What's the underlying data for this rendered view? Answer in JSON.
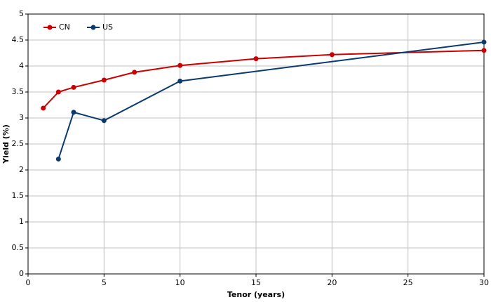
{
  "chart_data": {
    "type": "line",
    "xlabel": "Tenor (years)",
    "ylabel": "Yield (%)",
    "xlim": [
      0,
      30
    ],
    "xticks": [
      0,
      5,
      10,
      15,
      20,
      25,
      30
    ],
    "ylim": [
      0,
      5
    ],
    "yticks": [
      0,
      0.5,
      1,
      1.5,
      2,
      2.5,
      3,
      3.5,
      4,
      4.5,
      5
    ],
    "grid": true,
    "legend": "upper left",
    "series": [
      {
        "name": "CN",
        "color": "#cc0000",
        "x": [
          1,
          2,
          3,
          5,
          7,
          10,
          15,
          20,
          30
        ],
        "values": [
          3.19,
          3.5,
          3.59,
          3.73,
          3.88,
          4.01,
          4.14,
          4.22,
          4.3
        ]
      },
      {
        "name": "US",
        "color": "#0b3a6e",
        "x": [
          2,
          3,
          5,
          10,
          30
        ],
        "values": [
          2.21,
          3.11,
          2.95,
          3.71,
          4.46
        ]
      }
    ]
  }
}
